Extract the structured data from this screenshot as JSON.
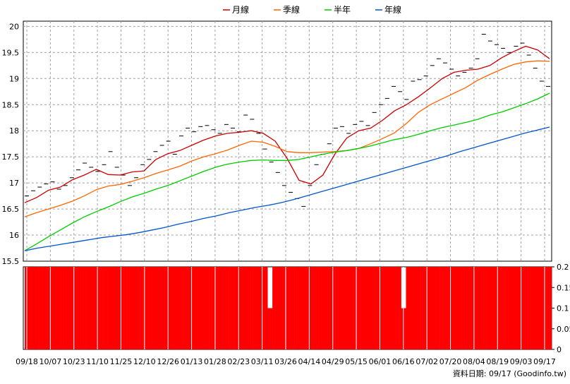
{
  "chart_data": {
    "type": "line",
    "title": "",
    "legend": {
      "placement": "top-center",
      "items": [
        {
          "name": "月線",
          "color": "#cc0000"
        },
        {
          "name": "季線",
          "color": "#ff6600"
        },
        {
          "name": "半年",
          "color": "#00cc00"
        },
        {
          "name": "年線",
          "color": "#0055cc"
        }
      ]
    },
    "x_tick_labels": [
      "09/18",
      "10/07",
      "10/23",
      "11/10",
      "11/25",
      "12/10",
      "12/26",
      "01/13",
      "01/28",
      "02/23",
      "03/11",
      "03/26",
      "04/14",
      "04/29",
      "05/15",
      "06/01",
      "06/16",
      "07/02",
      "07/20",
      "08/04",
      "08/19",
      "09/03",
      "09/17"
    ],
    "y_main": {
      "ylim": [
        15.5,
        20.1
      ],
      "ticks": [
        "20",
        "19.5",
        "19",
        "18.5",
        "18",
        "17.5",
        "17",
        "16.5",
        "16",
        "15.5"
      ],
      "grid": true
    },
    "y_sub": {
      "ylim": [
        0,
        0.2
      ],
      "ticks": [
        "0.2",
        "0.15",
        "0.1",
        "0.05",
        "0"
      ],
      "grid": false
    },
    "series": [
      {
        "name": "月線",
        "color": "#cc0000",
        "values": [
          16.62,
          16.72,
          16.86,
          16.92,
          17.06,
          17.15,
          17.26,
          17.16,
          17.15,
          17.21,
          17.23,
          17.45,
          17.56,
          17.62,
          17.72,
          17.82,
          17.9,
          17.95,
          17.97,
          18.0,
          17.95,
          17.8,
          17.47,
          17.05,
          16.98,
          17.15,
          17.55,
          17.86,
          18.0,
          18.05,
          18.2,
          18.38,
          18.5,
          18.65,
          18.82,
          19.0,
          19.12,
          19.16,
          19.18,
          19.25,
          19.4,
          19.52,
          19.62,
          19.55,
          19.38
        ]
      },
      {
        "name": "季線",
        "color": "#ff6600",
        "values": [
          16.35,
          16.43,
          16.5,
          16.57,
          16.65,
          16.75,
          16.87,
          16.94,
          16.97,
          17.03,
          17.1,
          17.18,
          17.25,
          17.32,
          17.42,
          17.5,
          17.56,
          17.63,
          17.72,
          17.8,
          17.78,
          17.7,
          17.6,
          17.58,
          17.58,
          17.59,
          17.6,
          17.62,
          17.66,
          17.75,
          17.85,
          17.96,
          18.14,
          18.35,
          18.5,
          18.61,
          18.72,
          18.83,
          18.97,
          19.08,
          19.18,
          19.27,
          19.32,
          19.34,
          19.33
        ]
      },
      {
        "name": "半年",
        "color": "#00cc00",
        "values": [
          15.7,
          15.83,
          15.97,
          16.1,
          16.23,
          16.35,
          16.45,
          16.54,
          16.64,
          16.73,
          16.8,
          16.88,
          16.95,
          17.04,
          17.13,
          17.22,
          17.3,
          17.36,
          17.4,
          17.43,
          17.44,
          17.43,
          17.43,
          17.45,
          17.5,
          17.55,
          17.59,
          17.62,
          17.66,
          17.71,
          17.77,
          17.83,
          17.87,
          17.93,
          18.0,
          18.06,
          18.11,
          18.16,
          18.22,
          18.3,
          18.36,
          18.44,
          18.52,
          18.61,
          18.72
        ]
      },
      {
        "name": "年線",
        "color": "#0055cc",
        "values": [
          15.7,
          15.75,
          15.79,
          15.83,
          15.87,
          15.91,
          15.95,
          15.98,
          16.01,
          16.05,
          16.1,
          16.15,
          16.21,
          16.26,
          16.32,
          16.37,
          16.43,
          16.48,
          16.53,
          16.57,
          16.62,
          16.68,
          16.75,
          16.82,
          16.89,
          16.96,
          17.03,
          17.1,
          17.17,
          17.24,
          17.31,
          17.38,
          17.45,
          17.52,
          17.6,
          17.67,
          17.74,
          17.81,
          17.88,
          17.95,
          18.01,
          18.07
        ]
      }
    ],
    "daily_price_marks": [
      16.75,
      16.85,
      16.92,
      16.98,
      17.02,
      16.88,
      16.95,
      17.1,
      17.25,
      17.38,
      17.3,
      17.22,
      17.35,
      17.6,
      17.3,
      17.15,
      16.95,
      17.1,
      17.35,
      17.45,
      17.6,
      17.72,
      17.8,
      17.55,
      17.9,
      18.05,
      17.98,
      18.08,
      18.1,
      18.02,
      17.95,
      18.12,
      18.05,
      17.98,
      18.3,
      18.22,
      17.95,
      17.65,
      17.4,
      17.2,
      16.95,
      16.82,
      16.7,
      16.55,
      16.95,
      17.35,
      17.55,
      17.75,
      18.05,
      18.08,
      17.95,
      18.12,
      18.18,
      18.1,
      18.35,
      18.5,
      18.62,
      18.85,
      18.75,
      18.6,
      18.95,
      18.98,
      19.05,
      19.25,
      19.38,
      19.3,
      19.18,
      19.05,
      19.12,
      19.2,
      19.38,
      19.85,
      19.72,
      19.65,
      19.58,
      19.5,
      19.62,
      19.68,
      19.45,
      19.2,
      18.95,
      18.85
    ],
    "sub_bars": {
      "color": "#ff0000",
      "values": [
        0.2,
        0.2,
        0.2,
        0.2,
        0.2,
        0.2,
        0.2,
        0.2,
        0.2,
        0.2,
        0.2,
        0.2,
        0.2,
        0.2,
        0.2,
        0.2,
        0.2,
        0.2,
        0.2,
        0.2,
        0.2,
        0.2,
        0.2,
        0.2,
        0.2,
        0.2,
        0.2,
        0.2,
        0.2,
        0.2,
        0.2,
        0.2,
        0.2,
        0.2,
        0.2,
        0.2,
        0.2,
        0.2,
        0.2,
        0.2,
        0.2,
        0.2,
        0.2,
        0.2,
        0.2,
        0.2,
        0.2,
        0.2,
        0.2,
        0.2,
        0.2,
        0.2,
        0.2,
        0.2,
        0.2,
        0.2,
        0.2,
        0.2,
        0.2,
        0.2,
        0.2,
        0.2,
        0.2,
        0.2,
        0.2,
        0.2,
        0.2,
        0.2,
        0.2,
        0.2,
        0.2,
        0.2,
        0.2,
        0.2,
        0.2,
        0.2,
        0.2,
        0.2,
        0.2,
        0.2,
        0.2,
        0.2,
        0.2,
        0.2,
        0.2,
        0.2,
        0.2,
        0.2,
        0.2,
        0.2,
        0.2,
        0.2,
        0.2,
        0.2,
        0.2,
        0.2,
        0.2,
        0.2,
        0.2,
        0.2,
        0.1,
        0.1,
        0.2,
        0.2,
        0.2,
        0.2,
        0.2,
        0.2,
        0.2,
        0.2,
        0.2,
        0.2,
        0.2,
        0.2,
        0.2,
        0.2,
        0.2,
        0.2,
        0.2,
        0.2,
        0.2,
        0.2,
        0.2,
        0.2,
        0.2,
        0.2,
        0.2,
        0.2,
        0.2,
        0.2,
        0.2,
        0.2,
        0.2,
        0.2,
        0.2,
        0.2,
        0.2,
        0.2,
        0.2,
        0.2,
        0.2,
        0.2,
        0.2,
        0.2,
        0.2,
        0.2,
        0.2,
        0.2,
        0.2,
        0.2,
        0.2,
        0.2,
        0.2,
        0.2,
        0.2,
        0.1,
        0.1,
        0.2,
        0.2,
        0.2,
        0.2,
        0.2,
        0.2,
        0.2,
        0.2,
        0.2,
        0.2,
        0.2,
        0.2,
        0.2,
        0.2,
        0.2,
        0.2,
        0.2,
        0.2,
        0.2,
        0.2,
        0.2,
        0.2,
        0.2,
        0.2,
        0.2,
        0.2,
        0.2,
        0.2,
        0.2,
        0.2,
        0.2,
        0.2,
        0.2,
        0.2,
        0.2,
        0.2,
        0.2,
        0.2,
        0.2,
        0.2,
        0.2,
        0.2,
        0.2,
        0.2,
        0.2,
        0.2,
        0.2,
        0.2,
        0.2,
        0.2,
        0.2,
        0.2,
        0.2,
        0.2,
        0.2,
        0.2,
        0.2,
        0.2,
        0.2,
        0.2
      ]
    },
    "footer": "資料日期: 09/17  (Goodinfo.tw)"
  }
}
